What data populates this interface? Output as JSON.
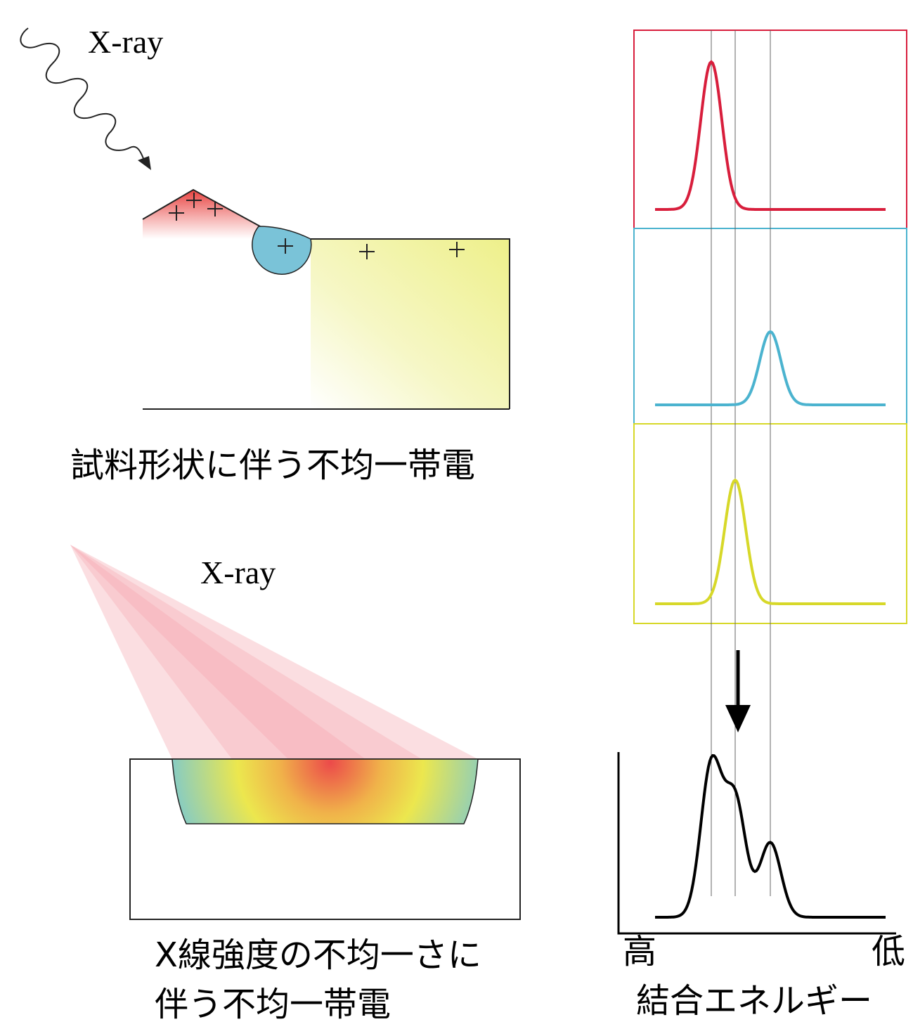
{
  "top_diagram": {
    "xray_label": "X-ray",
    "caption": "試料形状に伴う不均一帯電"
  },
  "bottom_diagram": {
    "xray_label": "X-ray",
    "caption_line1": "X線強度の不均一さに",
    "caption_line2": "伴う不均一帯電"
  },
  "spectrum": {
    "high_label": "高",
    "low_label": "低",
    "axis_label": "結合エネルギー"
  }
}
